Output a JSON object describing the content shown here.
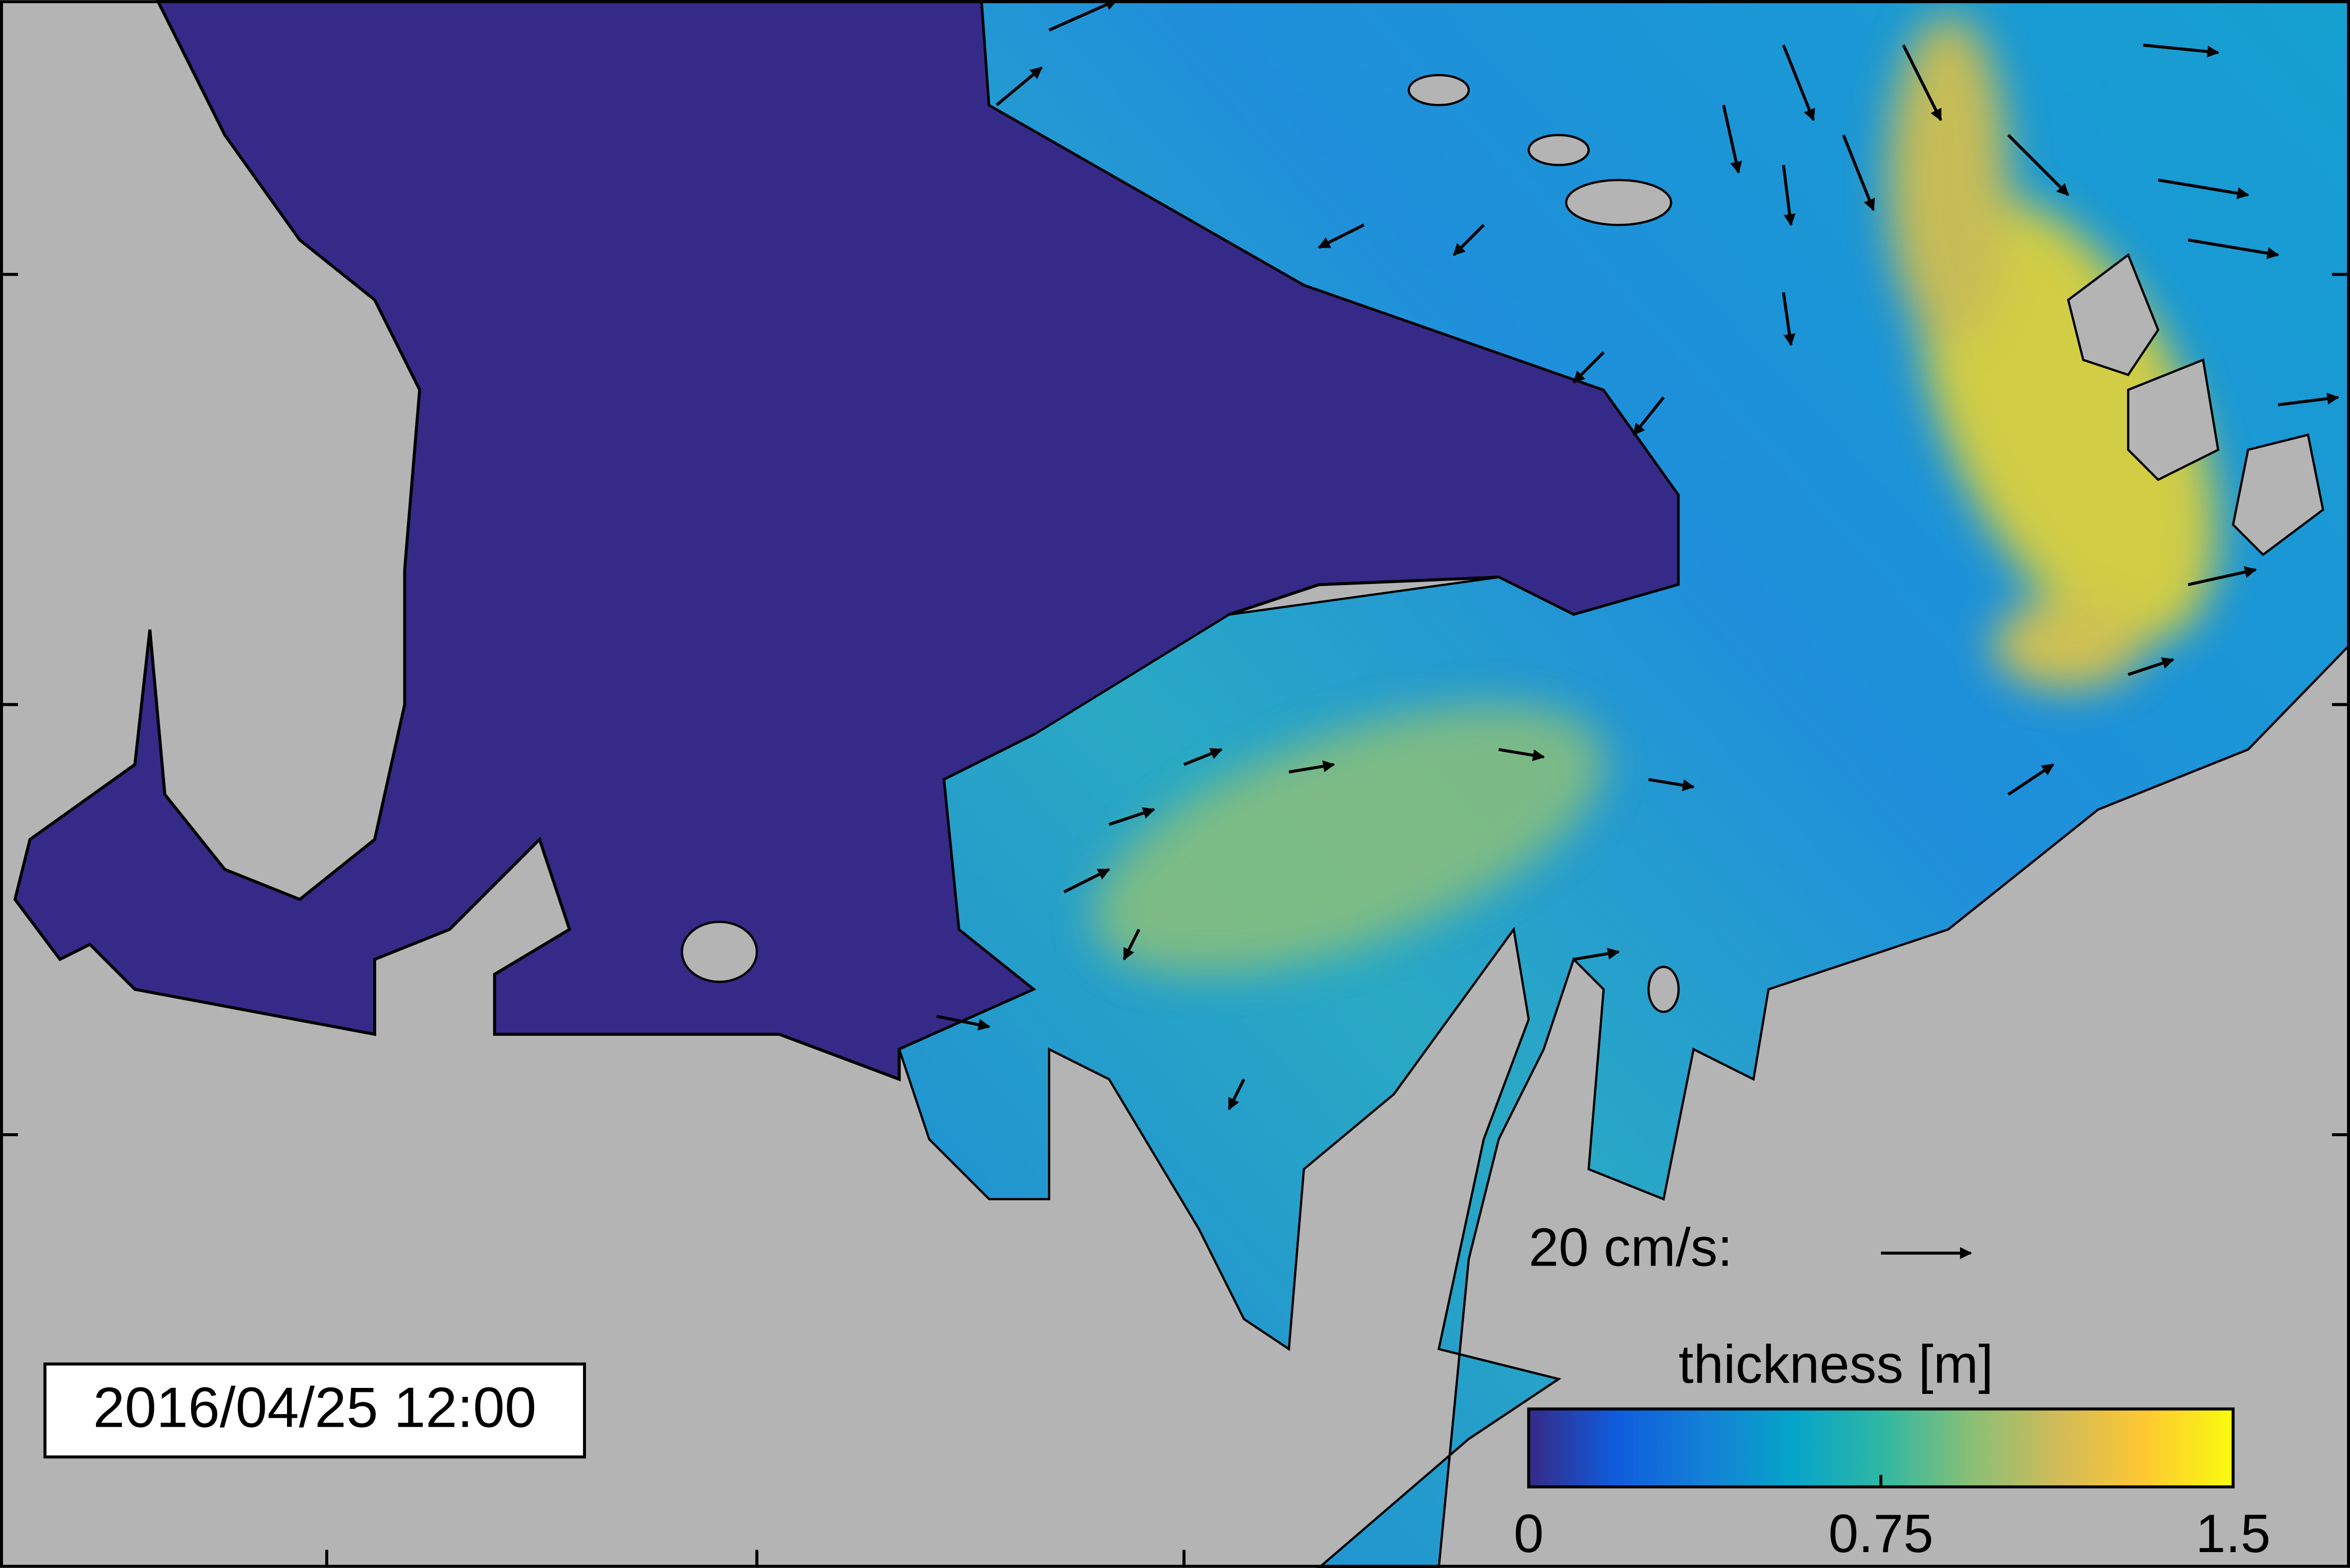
{
  "timestamp": "2016/04/25 12:00",
  "vector_scale": {
    "label": "20 cm/s:"
  },
  "colorbar": {
    "label": "thickness [m]",
    "lim": [
      0,
      1.5
    ],
    "ticks": [
      0,
      0.75,
      1.5
    ],
    "colormap": [
      "#352a87",
      "#0f5cdd",
      "#1481d6",
      "#06a4ca",
      "#2eb7a4",
      "#87bf77",
      "#d1bb59",
      "#fec832",
      "#f9fb0e"
    ]
  }
}
